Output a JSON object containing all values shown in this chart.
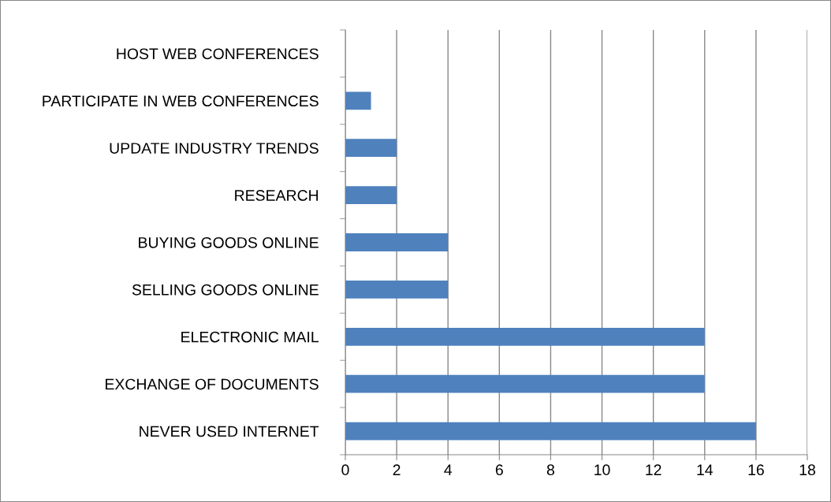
{
  "chart_data": {
    "type": "bar",
    "orientation": "horizontal",
    "categories": [
      "HOST WEB CONFERENCES",
      "PARTICIPATE IN WEB CONFERENCES",
      "UPDATE INDUSTRY TRENDS",
      "RESEARCH",
      "BUYING GOODS ONLINE",
      "SELLING GOODS ONLINE",
      "ELECTRONIC MAIL",
      "EXCHANGE OF DOCUMENTS",
      "NEVER USED INTERNET"
    ],
    "values": [
      0,
      1,
      2,
      2,
      4,
      4,
      14,
      14,
      16
    ],
    "color": "#4f81bd",
    "xlim": [
      0,
      18
    ],
    "xticks": [
      0,
      2,
      4,
      6,
      8,
      10,
      12,
      14,
      16,
      18
    ],
    "grid": "x",
    "legend": false
  }
}
